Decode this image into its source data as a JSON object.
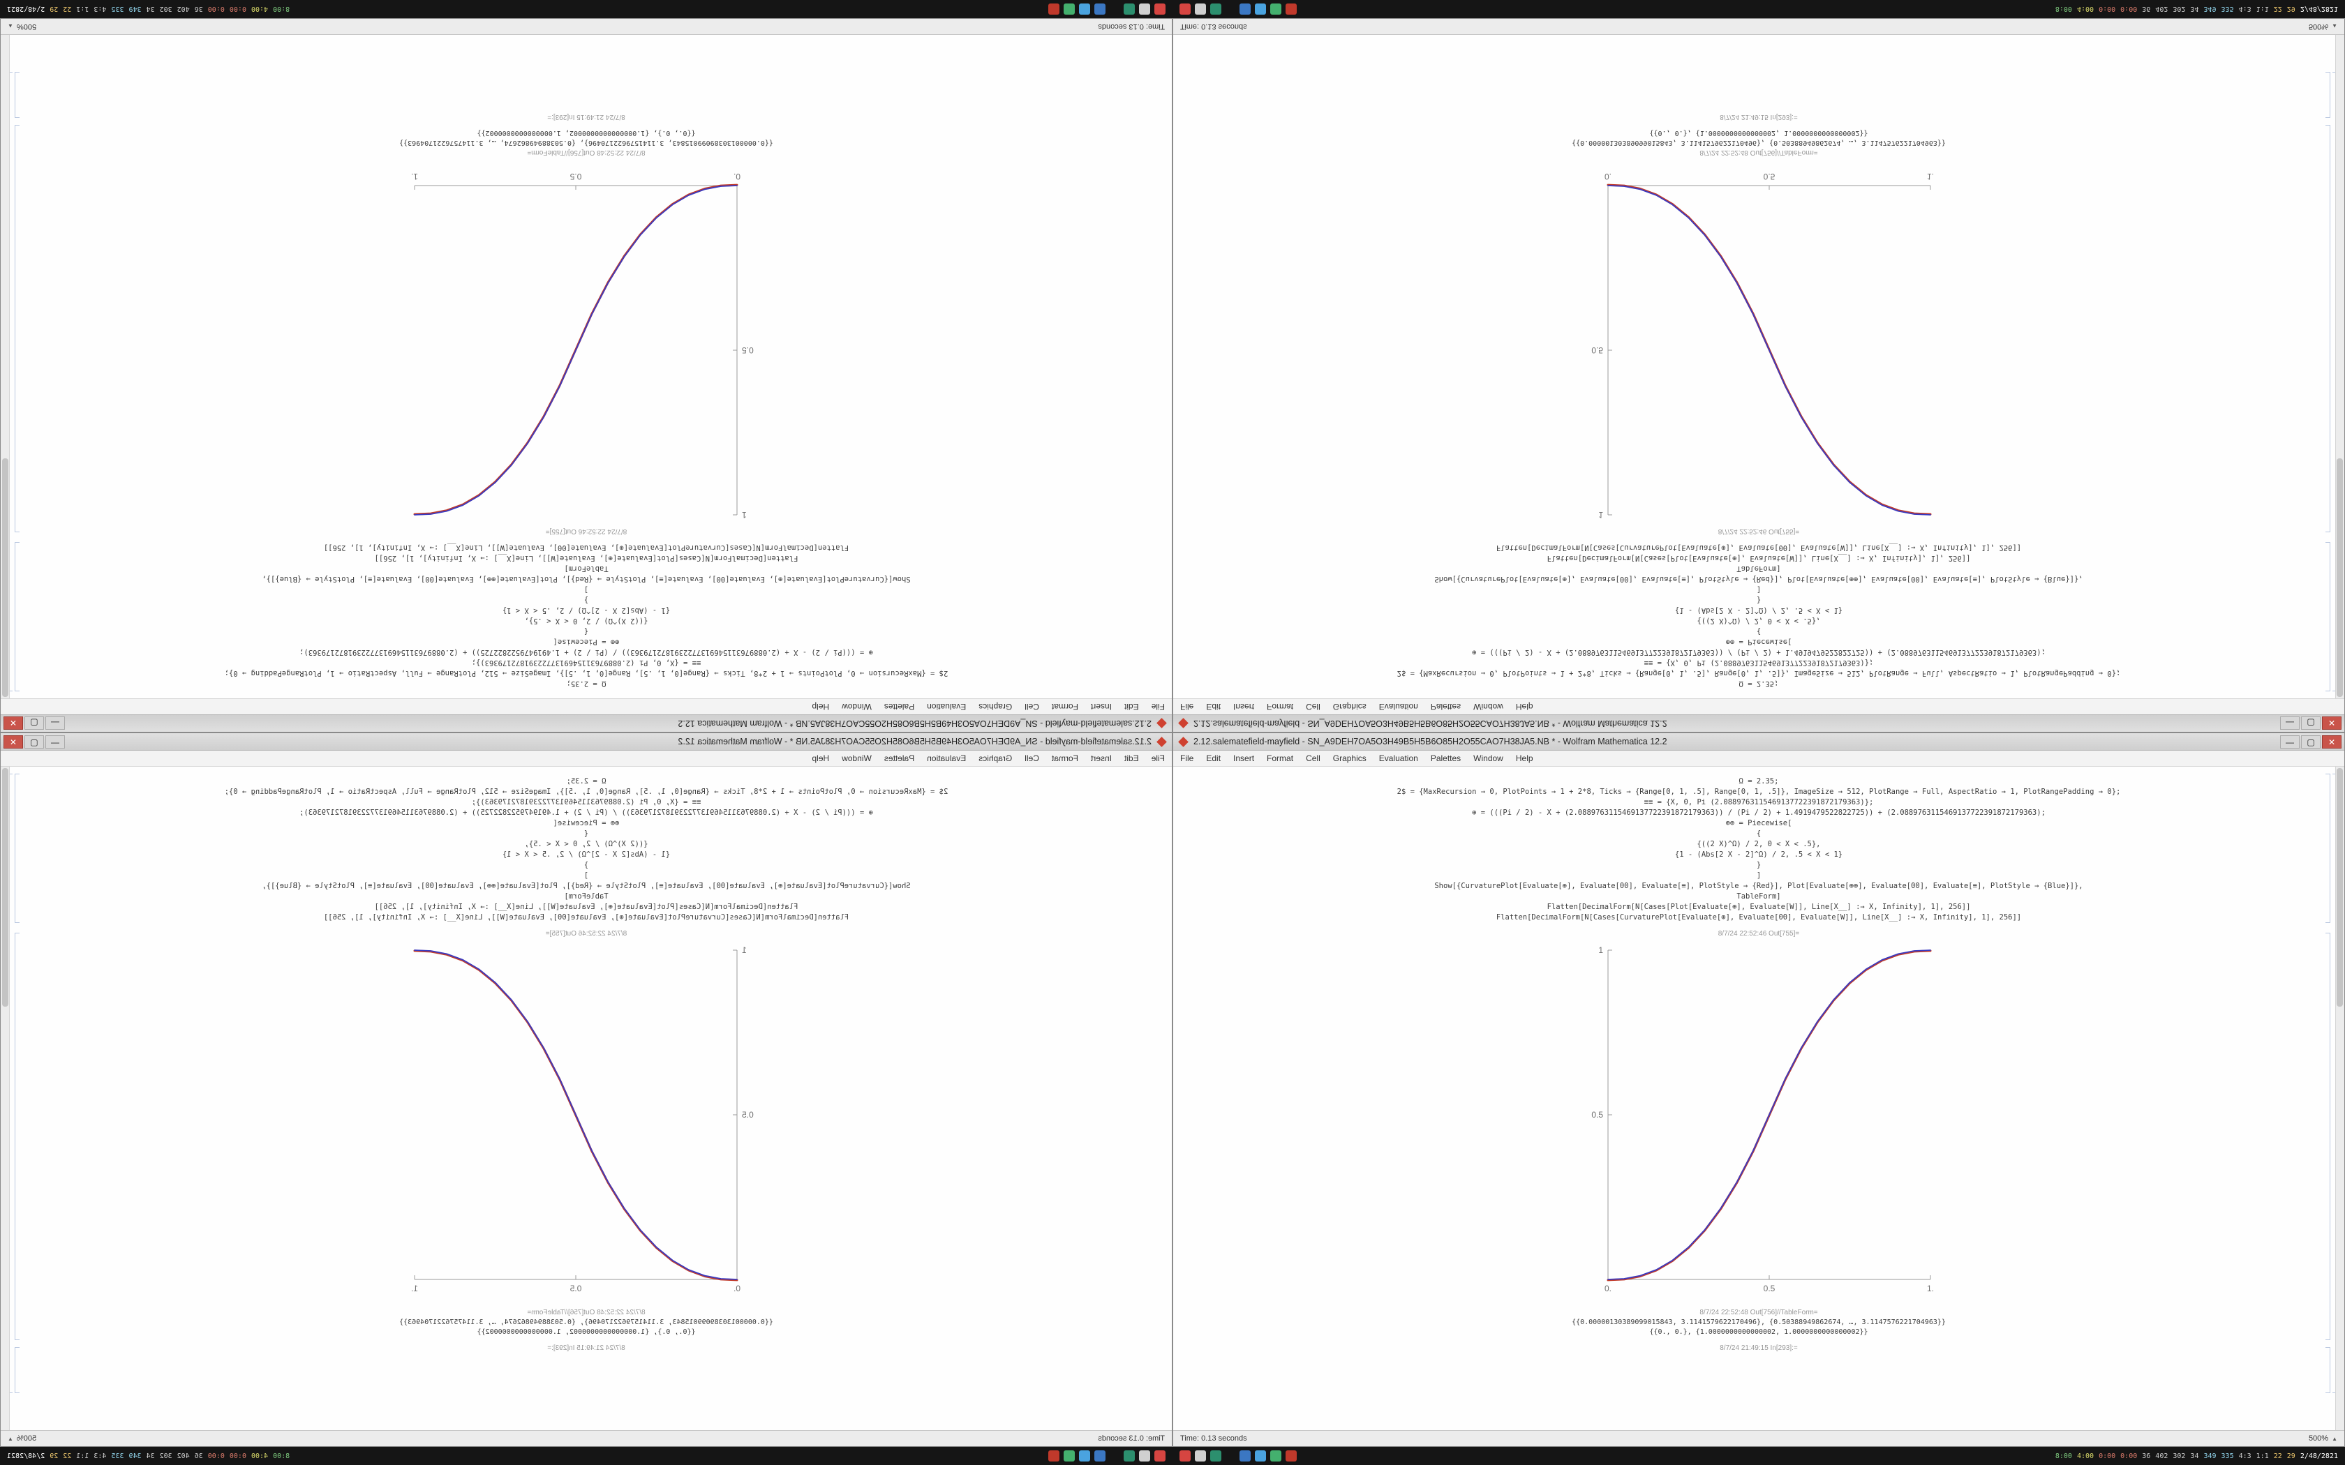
{
  "window": {
    "title": "2.12.salematefield-mayfield - SN_A9DEH7OA5O3H49B5H5B6O85H2O55CAO7H38JA5.NB * - Wolfram Mathematica 12.2",
    "buttons": {
      "minimize": "—",
      "maximize": "▢",
      "close": "✕"
    },
    "menu": [
      "File",
      "Edit",
      "Insert",
      "Format",
      "Cell",
      "Graphics",
      "Evaluation",
      "Palettes",
      "Window",
      "Help"
    ],
    "notebook": {
      "code_lines": [
        "Ω = 2.35;",
        "2$ = {MaxRecursion → 0, PlotPoints → 1 + 2*8, Ticks → {Range[0, 1, .5], Range[0, 1, .5]}, ImageSize → 512, PlotRange → Full, AspectRatio → 1, PlotRangePadding → 0};",
        "≡≡ = {X, 0, Pi (2.0889763115469137722391872179363)};",
        "⊕ = (((Pi / 2) - X + (2.0889763115469137722391872179363)) / (Pi / 2) + 1.4919479522822725)) + (2.0889763115469137722391872179363);",
        "⊕⊕ = Piecewise[",
        "{",
        "{((2 X)^Ω) / 2, 0 < X < .5},",
        "{1 - (Abs[2 X - 2]^Ω) / 2, .5 < X < 1}",
        "}",
        "]",
        "Show[{CurvaturePlot[Evaluate[⊕], Evaluate[00], Evaluate[≡], PlotStyle → {Red}], Plot[Evaluate[⊕⊕], Evaluate[00], Evaluate[≡], PlotStyle → {Blue}]},",
        "TableForm]",
        "Flatten[DecimalForm[N[Cases[Plot[Evaluate[⊕], Evaluate[W]], Line[X__] :→ X, Infinity], 1], 256]]",
        "Flatten[DecimalForm[N[Cases[CurvaturePlot[Evaluate[⊕], Evaluate[00], Evaluate[W]], Line[X__] :→ X, Infinity], 1], 256]]"
      ],
      "out_plot_label": "8/7/24 22:52:46 Out[755]=",
      "out_table_label": "8/7/24 22:52:48 Out[756]//TableForm=",
      "table_lines": [
        "{{0.00000130389099015843, 3.1141579622170496}, {0.50388949862674, …, 3.1147576221704963}}",
        "{{0., 0.}, {1.0000000000000002, 1.0000000000000002}}"
      ],
      "in_label": "8/7/24 21:49:15 In[293]:="
    },
    "status": {
      "time_text": "Time: 0.13 seconds",
      "zoom": "500%",
      "zoom_arrow": "▲"
    }
  },
  "taskbar": {
    "icons": [
      {
        "name": "launcher",
        "color": "#d64541"
      },
      {
        "name": "files",
        "color": "#d0d0d0"
      },
      {
        "name": "terminal",
        "color": "#2c8f6e"
      },
      {
        "name": "browser",
        "color": "#3b77c2"
      },
      {
        "name": "mail",
        "color": "#4aa3df"
      },
      {
        "name": "media",
        "color": "#44b06e"
      },
      {
        "name": "capture",
        "color": "#c0392b"
      }
    ],
    "icon_gap_after": 2,
    "stats": [
      {
        "text": "8:00",
        "color": "#7ec97e"
      },
      {
        "text": "4:00",
        "color": "#d9d96a"
      },
      {
        "text": "0:00",
        "color": "#d97a6a"
      },
      {
        "text": "0:00",
        "color": "#d97a6a"
      },
      {
        "text": "36",
        "color": "#cccccc"
      },
      {
        "text": "402",
        "color": "#cccccc"
      },
      {
        "text": "302",
        "color": "#cccccc"
      },
      {
        "text": "34",
        "color": "#cccccc"
      },
      {
        "text": "349",
        "color": "#8fd1e8"
      },
      {
        "text": "335",
        "color": "#8fd1e8"
      },
      {
        "text": "4:3",
        "color": "#cccccc"
      },
      {
        "text": "1:1",
        "color": "#cccccc"
      },
      {
        "text": "22",
        "color": "#e8c26a"
      },
      {
        "text": "29",
        "color": "#e8c26a"
      },
      {
        "text": "2/48/2821",
        "color": "#ffffff"
      }
    ]
  },
  "chart_data": {
    "type": "line",
    "title": "",
    "xlabel": "",
    "ylabel": "",
    "xlim": [
      0,
      1
    ],
    "ylim": [
      0,
      1
    ],
    "xticks": [
      0,
      0.5,
      1
    ],
    "xtick_labels": [
      "0.",
      "0.5",
      "1."
    ],
    "yticks": [
      0.5,
      1
    ],
    "ytick_labels": [
      "0.5",
      "1"
    ],
    "axis_color": "#9a9a9a",
    "tick_label_color": "#6e6e6e",
    "image_size": 512,
    "note": "Piecewise smoothstep (2x)^Ω/2 for 0<x<.5, 1-(2-2x)^Ω/2 for .5<x<1, Ω=2.35; red and blue curves overlap",
    "x": [
      0,
      0.05,
      0.1,
      0.15,
      0.2,
      0.25,
      0.3,
      0.35,
      0.4,
      0.45,
      0.5,
      0.55,
      0.6,
      0.65,
      0.7,
      0.75,
      0.8,
      0.85,
      0.9,
      0.95,
      1
    ],
    "series": [
      {
        "name": "CurvaturePlot (Red)",
        "color": "#c03a2b",
        "values": [
          0,
          0.0022,
          0.0114,
          0.0295,
          0.058,
          0.098,
          0.1505,
          0.2163,
          0.296,
          0.3904,
          0.5,
          0.6096,
          0.704,
          0.7837,
          0.8495,
          0.902,
          0.942,
          0.9705,
          0.9886,
          0.9978,
          1
        ]
      },
      {
        "name": "Plot (Blue)",
        "color": "#3a3ac0",
        "values": [
          0,
          0.0022,
          0.0114,
          0.0295,
          0.058,
          0.098,
          0.1505,
          0.2163,
          0.296,
          0.3904,
          0.5,
          0.6096,
          0.704,
          0.7837,
          0.8495,
          0.902,
          0.942,
          0.9705,
          0.9886,
          0.9978,
          1
        ]
      }
    ],
    "legend": "off",
    "grid": "off"
  }
}
